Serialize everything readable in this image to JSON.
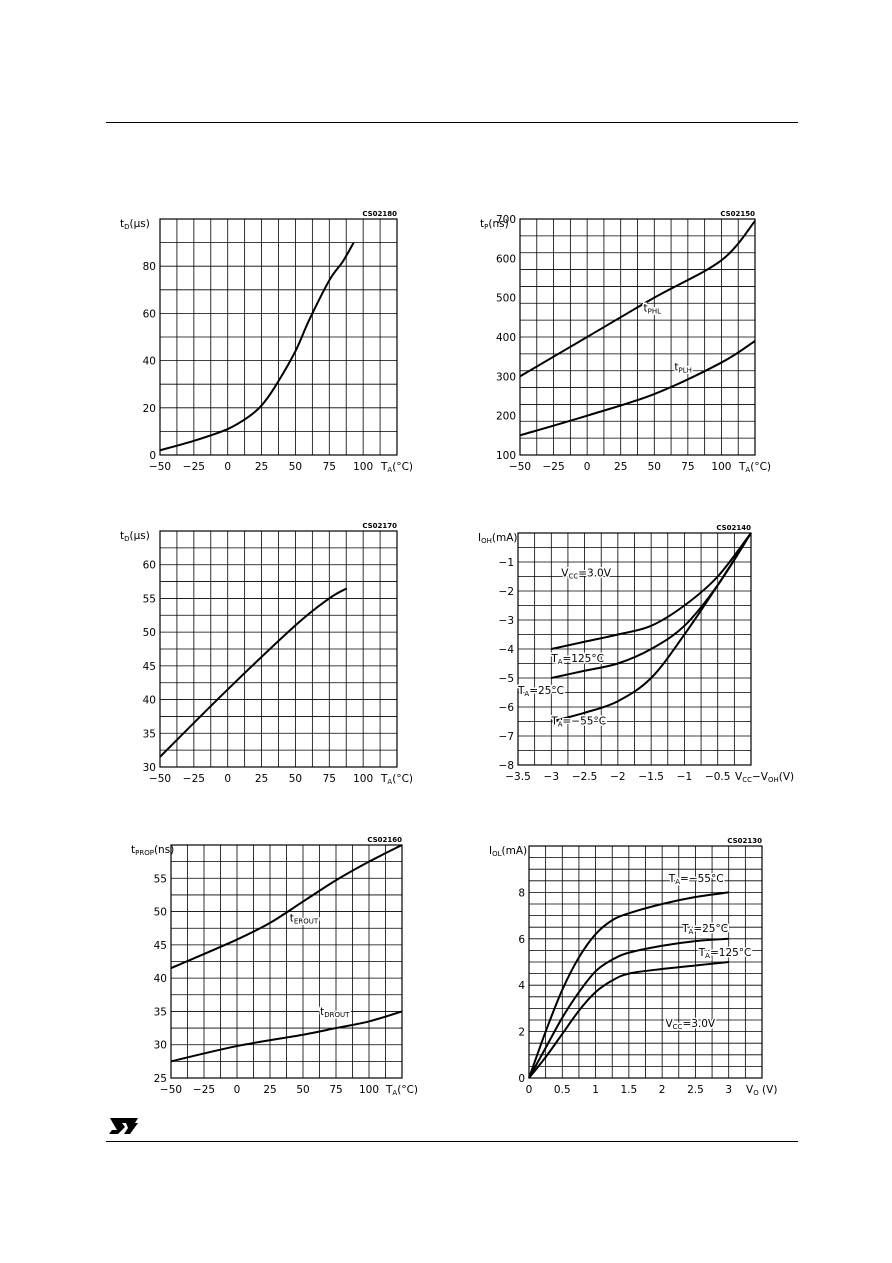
{
  "chart_data": [
    {
      "type": "line",
      "code": "CS02180",
      "ylabel": {
        "main": "t",
        "sub": "D",
        "rest": "(μs)"
      },
      "xlabel": {
        "main": "T",
        "sub": "A",
        "rest": "(°C)"
      },
      "xticks": [
        "−50",
        "−25",
        "0",
        "25",
        "50",
        "75",
        "100"
      ],
      "yticks": [
        "0",
        "20",
        "40",
        "60",
        "80"
      ],
      "xlim": [
        -50,
        125
      ],
      "ylim": [
        0,
        100
      ],
      "series": [
        {
          "x": [
            -50,
            -25,
            0,
            15,
            25,
            35,
            50,
            60,
            75,
            85,
            93
          ],
          "y": [
            2,
            6,
            11,
            16,
            21,
            29,
            44,
            57,
            74,
            82,
            90
          ]
        }
      ],
      "annotations": []
    },
    {
      "type": "line",
      "code": "CS02150",
      "ylabel": {
        "main": "t",
        "sub": "P",
        "rest": "(ns)"
      },
      "xlabel": {
        "main": "T",
        "sub": "A",
        "rest": "(°C)"
      },
      "xticks": [
        "−50",
        "−25",
        "0",
        "25",
        "50",
        "75",
        "100"
      ],
      "yticks": [
        "100",
        "200",
        "300",
        "400",
        "500",
        "600",
        "700"
      ],
      "xlim": [
        -50,
        125
      ],
      "ylim": [
        100,
        700
      ],
      "series": [
        {
          "x": [
            -50,
            0,
            50,
            100,
            125
          ],
          "y": [
            300,
            400,
            500,
            595,
            695
          ]
        },
        {
          "x": [
            -50,
            0,
            50,
            100,
            125
          ],
          "y": [
            150,
            200,
            255,
            335,
            390
          ]
        }
      ],
      "annotations": [
        {
          "main": "t",
          "sub": "PHL",
          "x": 42,
          "y": 465
        },
        {
          "main": "t",
          "sub": "PLH",
          "x": 65,
          "y": 315
        }
      ]
    },
    {
      "type": "line",
      "code": "CS02170",
      "ylabel": {
        "main": "t",
        "sub": "D",
        "rest": "(μs)"
      },
      "xlabel": {
        "main": "T",
        "sub": "A",
        "rest": "(°C)"
      },
      "xticks": [
        "−50",
        "−25",
        "0",
        "25",
        "50",
        "75",
        "100"
      ],
      "yticks": [
        "30",
        "35",
        "40",
        "45",
        "50",
        "55",
        "60"
      ],
      "xlim": [
        -50,
        125
      ],
      "ylim": [
        30,
        65
      ],
      "series": [
        {
          "x": [
            -50,
            0,
            50,
            75,
            88
          ],
          "y": [
            31.5,
            41.5,
            51,
            55,
            56.5
          ]
        }
      ],
      "annotations": []
    },
    {
      "type": "line",
      "code": "CS02140",
      "ylabel": {
        "main": "I",
        "sub": "OH",
        "rest": "(mA)"
      },
      "xlabel": {
        "main": "V",
        "sub": "CC",
        "rest": "−V",
        "sub2": "OH",
        "rest2": "(V)"
      },
      "xticks": [
        "−3.5",
        "−3",
        "−2.5",
        "−2",
        "−1.5",
        "−1",
        "−0.5"
      ],
      "yticks": [
        "−1",
        "−2",
        "−3",
        "−4",
        "−5",
        "−6",
        "−7",
        "−8"
      ],
      "xlim": [
        -3.5,
        0
      ],
      "ylim": [
        -8,
        0
      ],
      "series": [
        {
          "x": [
            -3,
            -2.5,
            -2,
            -1.5,
            -1,
            -0.5,
            0
          ],
          "y": [
            -4,
            -3.75,
            -3.5,
            -3.2,
            -2.5,
            -1.5,
            0
          ]
        },
        {
          "x": [
            -3,
            -2.5,
            -2,
            -1.5,
            -1,
            -0.5,
            0
          ],
          "y": [
            -5,
            -4.75,
            -4.5,
            -4,
            -3.2,
            -1.8,
            0
          ]
        },
        {
          "x": [
            -3,
            -2.5,
            -2,
            -1.5,
            -1,
            -0.5,
            0
          ],
          "y": [
            -6.5,
            -6.2,
            -5.8,
            -5,
            -3.5,
            -1.8,
            0
          ]
        }
      ],
      "annotations": [
        {
          "main": "V",
          "sub": "CC",
          "rest": "=3.0V",
          "x": -2.85,
          "y": -1.5
        },
        {
          "main": "T",
          "sub": "A",
          "rest": "=125°C",
          "x": -3,
          "y": -4.45
        },
        {
          "main": "T",
          "sub": "A",
          "rest": "=25°C",
          "x": -3.5,
          "y": -5.55
        },
        {
          "main": "T",
          "sub": "A",
          "rest": "=−55°C",
          "x": -3,
          "y": -6.6
        }
      ]
    },
    {
      "type": "line",
      "code": "CS02160",
      "ylabel": {
        "main": "t",
        "sub": "PROP",
        "rest": "(ns)"
      },
      "xlabel": {
        "main": "T",
        "sub": "A",
        "rest": "(°C)"
      },
      "xticks": [
        "−50",
        "−25",
        "0",
        "25",
        "50",
        "75",
        "100"
      ],
      "yticks": [
        "25",
        "30",
        "35",
        "40",
        "45",
        "50",
        "55"
      ],
      "xlim": [
        -50,
        125
      ],
      "ylim": [
        25,
        60
      ],
      "series": [
        {
          "x": [
            -50,
            0,
            25,
            50,
            75,
            100,
            125
          ],
          "y": [
            41.5,
            45.8,
            48.3,
            51.5,
            54.7,
            57.5,
            60
          ]
        },
        {
          "x": [
            -50,
            0,
            50,
            75,
            100,
            125
          ],
          "y": [
            27.5,
            29.8,
            31.5,
            32.5,
            33.5,
            35
          ]
        }
      ],
      "annotations": [
        {
          "main": "t",
          "sub": "EROUT",
          "x": 40,
          "y": 48.5
        },
        {
          "main": "t",
          "sub": "DROUT",
          "x": 63,
          "y": 34.5
        }
      ]
    },
    {
      "type": "line",
      "code": "CS02130",
      "ylabel": {
        "main": "I",
        "sub": "OL",
        "rest": "(mA)"
      },
      "xlabel": {
        "main": "V",
        "sub": "O",
        "rest": " (V)"
      },
      "xticks": [
        "0",
        "0.5",
        "1",
        "1.5",
        "2",
        "2.5",
        "3"
      ],
      "yticks": [
        "0",
        "2",
        "4",
        "6",
        "8"
      ],
      "xlim": [
        0,
        3.5
      ],
      "ylim": [
        0,
        10
      ],
      "series": [
        {
          "x": [
            0,
            0.25,
            0.5,
            0.75,
            1,
            1.25,
            1.5,
            2,
            2.5,
            3
          ],
          "y": [
            0,
            2,
            3.8,
            5.2,
            6.2,
            6.8,
            7.1,
            7.5,
            7.8,
            8
          ]
        },
        {
          "x": [
            0,
            0.25,
            0.5,
            0.75,
            1,
            1.25,
            1.5,
            2,
            2.5,
            3
          ],
          "y": [
            0,
            1.3,
            2.6,
            3.7,
            4.6,
            5.1,
            5.4,
            5.7,
            5.9,
            6
          ]
        },
        {
          "x": [
            0,
            0.25,
            0.5,
            0.75,
            1,
            1.25,
            1.5,
            2,
            2.5,
            3
          ],
          "y": [
            0,
            0.9,
            1.9,
            2.9,
            3.7,
            4.2,
            4.5,
            4.7,
            4.85,
            5
          ]
        }
      ],
      "annotations": [
        {
          "main": "T",
          "sub": "A",
          "rest": "=−55°C",
          "x": 2.1,
          "y": 8.45
        },
        {
          "main": "T",
          "sub": "A",
          "rest": "=25°C",
          "x": 2.3,
          "y": 6.3
        },
        {
          "main": "T",
          "sub": "A",
          "rest": "=125°C",
          "x": 2.55,
          "y": 5.25
        },
        {
          "main": "V",
          "sub": "CC",
          "rest": "=3.0V",
          "x": 2.05,
          "y": 2.2
        }
      ]
    }
  ]
}
